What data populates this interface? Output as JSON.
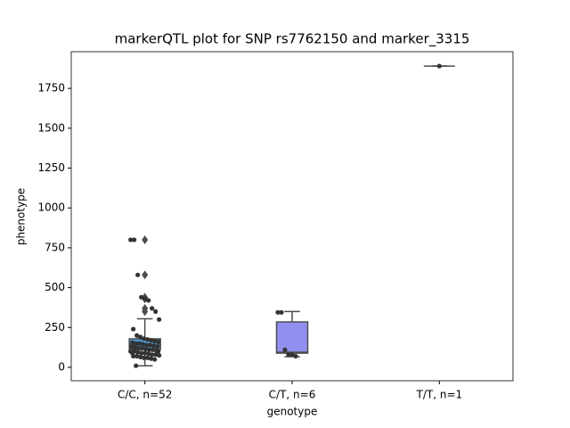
{
  "chart_data": {
    "type": "box",
    "title": "markerQTL plot for SNP rs7762150 and marker_3315",
    "xlabel": "genotype",
    "ylabel": "phenotype",
    "categories": [
      "C/C, n=52",
      "C/T, n=6",
      "T/T, n=1"
    ],
    "boxes": [
      {
        "color": "#4a9fdc",
        "whislo": 10,
        "q1": 112,
        "med": 140,
        "q3": 179,
        "whishi": 305,
        "fliers": [
          800,
          580,
          440,
          430,
          370,
          350
        ],
        "points": [
          800,
          800,
          580,
          440,
          430,
          420,
          370,
          350,
          300,
          240,
          200,
          190,
          180,
          175,
          170,
          165,
          160,
          155,
          150,
          150,
          145,
          140,
          140,
          135,
          130,
          130,
          125,
          120,
          120,
          115,
          110,
          110,
          105,
          100,
          100,
          95,
          90,
          90,
          85,
          80,
          80,
          75,
          70,
          70,
          65,
          60,
          60,
          55,
          50,
          100,
          90,
          10
        ]
      },
      {
        "color": "#9090f0",
        "whislo": 67,
        "q1": 89,
        "med": 95,
        "q3": 285,
        "whishi": 350,
        "fliers": [],
        "points": [
          345,
          345,
          110,
          80,
          80,
          70
        ]
      },
      {
        "color": "#b07cd8",
        "whislo": 1890,
        "q1": 1890,
        "med": 1890,
        "q3": 1890,
        "whishi": 1890,
        "fliers": [],
        "points": [
          1890
        ]
      }
    ],
    "point_color": "#333333",
    "ylim": [
      -84,
      1980
    ],
    "yticks": [
      0,
      250,
      500,
      750,
      1000,
      1250,
      1500,
      1750
    ]
  }
}
